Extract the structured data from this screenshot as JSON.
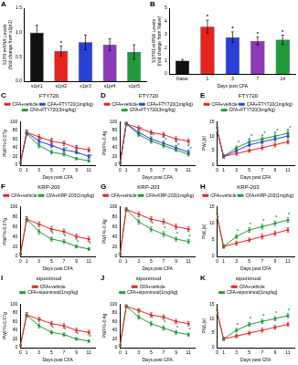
{
  "chart_data": [
    {
      "panel": "A",
      "type": "bar",
      "y_label": [
        "S1PR mRNA Levels",
        "(fold change from s1pr1)"
      ],
      "categories": [
        "s1pr1",
        "s1pr2",
        "s1pr3",
        "s1pr4",
        "s1pr5"
      ],
      "values": [
        1.0,
        0.62,
        0.8,
        0.75,
        0.6
      ],
      "errors": [
        0.15,
        0.1,
        0.15,
        0.12,
        0.15
      ],
      "significance": [
        null,
        "*",
        null,
        null,
        null
      ],
      "colors": [
        "#111111",
        "#e8221f",
        "#2a3fd6",
        "#8a3ab9",
        "#1f9a3a"
      ],
      "ylim": [
        0,
        1.5
      ],
      "yticks": [
        {
          "value": 0,
          "label": "0.0"
        },
        {
          "value": 0.5,
          "label": "0.5"
        },
        {
          "value": 1,
          "label": "1.0"
        },
        {
          "value": 1.5,
          "label": "1.5"
        }
      ],
      "grid": false
    },
    {
      "panel": "B",
      "type": "bar",
      "y_label": [
        "S1PR1 mRNA Levels",
        "(fold change from Naive)"
      ],
      "x_label": "Days post CFA",
      "categories": [
        "Naive",
        "1",
        "3",
        "7",
        "14"
      ],
      "values": [
        1.0,
        3.6,
        2.8,
        2.5,
        2.6
      ],
      "errors": [
        0.1,
        0.5,
        0.4,
        0.3,
        0.35
      ],
      "significance": [
        null,
        "*",
        "*",
        "*",
        "*"
      ],
      "colors": [
        "#111111",
        "#e8221f",
        "#2a3fd6",
        "#8a3ab9",
        "#1f9a3a"
      ],
      "ylim": [
        0,
        5
      ],
      "yticks": [
        0,
        1,
        2,
        3,
        4,
        5
      ],
      "grid": false
    },
    {
      "panel": "C",
      "type": "line",
      "title": "FTY720",
      "y_label": "PWF%-0.07g",
      "x_label": "Days post CFA",
      "x": [
        0,
        1,
        3,
        5,
        7,
        9,
        11
      ],
      "xlim": [
        0,
        12
      ],
      "xticks": [
        0,
        1,
        3,
        5,
        7,
        9,
        11
      ],
      "ylim": [
        0,
        100
      ],
      "yticks": [
        0,
        20,
        40,
        60,
        80,
        100
      ],
      "grid": false,
      "legend": "top",
      "marker": "circle",
      "series": [
        {
          "name": "CFA+vehicle",
          "color": "#e8221f",
          "values": [
            5,
            75,
            65,
            55,
            50,
            40,
            35
          ],
          "errors": [
            2,
            5,
            5,
            5,
            5,
            5,
            5
          ]
        },
        {
          "name": "CFA+FTY720(1mg/kg)",
          "color": "#2a3fd6",
          "values": [
            5,
            75,
            55,
            45,
            35,
            30,
            20
          ],
          "errors": [
            2,
            5,
            5,
            5,
            5,
            4,
            4
          ],
          "significance": [
            null,
            null,
            null,
            "*",
            "*",
            "*",
            "*"
          ]
        },
        {
          "name": "CFA+FTY720(3mg/kg)",
          "color": "#1f9a3a",
          "values": [
            5,
            72,
            45,
            30,
            25,
            15,
            10
          ],
          "errors": [
            2,
            5,
            5,
            4,
            4,
            3,
            3
          ],
          "significance": [
            null,
            null,
            "*",
            "*",
            "*",
            "*",
            "*"
          ]
        }
      ]
    },
    {
      "panel": "D",
      "type": "line",
      "title": "FTY720",
      "y_label": "PWF%-0.4g",
      "x_label": "Days post CFA",
      "x": [
        0,
        1,
        3,
        5,
        7,
        9,
        11
      ],
      "xlim": [
        0,
        12
      ],
      "xticks": [
        0,
        1,
        3,
        5,
        7,
        9,
        11
      ],
      "ylim": [
        0,
        100
      ],
      "yticks": [
        0,
        20,
        40,
        60,
        80,
        100
      ],
      "grid": false,
      "legend": "top",
      "marker": "circle",
      "series": [
        {
          "name": "CFA+vehicle",
          "color": "#e8221f",
          "values": [
            5,
            95,
            85,
            75,
            70,
            60,
            55
          ],
          "errors": [
            2,
            3,
            5,
            5,
            5,
            5,
            5
          ]
        },
        {
          "name": "CFA+FTY720(1mg/kg)",
          "color": "#2a3fd6",
          "values": [
            5,
            95,
            75,
            60,
            50,
            40,
            30
          ],
          "errors": [
            2,
            3,
            5,
            5,
            5,
            5,
            5
          ],
          "significance": [
            null,
            null,
            null,
            "*",
            "*",
            "*",
            "*"
          ]
        },
        {
          "name": "CFA+FTY720(3mg/kg)",
          "color": "#1f9a3a",
          "values": [
            5,
            95,
            70,
            55,
            45,
            35,
            25
          ],
          "errors": [
            2,
            3,
            5,
            5,
            5,
            4,
            4
          ],
          "significance": [
            null,
            null,
            "*",
            "*",
            "*",
            "*",
            "*"
          ]
        }
      ]
    },
    {
      "panel": "E",
      "type": "line",
      "title": "FTY720",
      "y_label": "PWL(s)",
      "x_label": "Days post CFA",
      "x": [
        0,
        1,
        3,
        5,
        7,
        9,
        11
      ],
      "xlim": [
        0,
        12
      ],
      "xticks": [
        0,
        1,
        3,
        5,
        7,
        9,
        11
      ],
      "ylim": [
        0,
        15
      ],
      "yticks": [
        0,
        5,
        10,
        15
      ],
      "grid": false,
      "legend": "top",
      "marker": "circle",
      "series": [
        {
          "name": "CFA+vehicle",
          "color": "#e8221f",
          "values": [
            12,
            3,
            4,
            5,
            6,
            7,
            8
          ],
          "errors": [
            0.8,
            0.5,
            0.6,
            0.6,
            0.7,
            0.7,
            0.7
          ]
        },
        {
          "name": "CFA+FTY720(1mg/kg)",
          "color": "#2a3fd6",
          "values": [
            12,
            3,
            5,
            7,
            8,
            9,
            10
          ],
          "errors": [
            0.8,
            0.5,
            0.6,
            0.6,
            0.7,
            0.7,
            0.7
          ],
          "significance": [
            null,
            null,
            null,
            "*",
            "*",
            "*",
            "*"
          ]
        },
        {
          "name": "CFA+FTY720(3mg/kg)",
          "color": "#1f9a3a",
          "values": [
            12,
            3,
            6,
            8,
            9,
            10,
            11
          ],
          "errors": [
            0.8,
            0.5,
            0.6,
            0.7,
            0.7,
            0.7,
            0.7
          ],
          "significance": [
            null,
            null,
            "*",
            "*",
            "*",
            "*",
            "*"
          ]
        }
      ]
    },
    {
      "panel": "F",
      "type": "line",
      "title": "KRP-203",
      "y_label": "PWF%-0.07g",
      "x_label": "Days post CFA",
      "x": [
        0,
        1,
        3,
        5,
        7,
        9,
        11
      ],
      "xlim": [
        0,
        12
      ],
      "xticks": [
        0,
        1,
        3,
        5,
        7,
        9,
        11
      ],
      "ylim": [
        0,
        100
      ],
      "yticks": [
        0,
        20,
        40,
        60,
        80,
        100
      ],
      "grid": false,
      "legend": "top",
      "marker": "circle",
      "series": [
        {
          "name": "CFA+vehicle",
          "color": "#e8221f",
          "values": [
            5,
            75,
            65,
            55,
            50,
            40,
            35
          ],
          "errors": [
            2,
            5,
            5,
            5,
            5,
            5,
            5
          ]
        },
        {
          "name": "CFA+KRP-203(1mg/kg)",
          "color": "#1f9a3a",
          "values": [
            5,
            75,
            50,
            35,
            30,
            20,
            15
          ],
          "errors": [
            2,
            5,
            5,
            4,
            4,
            3,
            3
          ],
          "significance": [
            null,
            null,
            "*",
            "*",
            "*",
            "*",
            "*"
          ]
        }
      ]
    },
    {
      "panel": "G",
      "type": "line",
      "title": "KRP-203",
      "y_label": "PWF%-0.4g",
      "x_label": "Days post CFA",
      "x": [
        0,
        1,
        3,
        5,
        7,
        9,
        11
      ],
      "xlim": [
        0,
        12
      ],
      "xticks": [
        0,
        1,
        3,
        5,
        7,
        9,
        11
      ],
      "ylim": [
        0,
        100
      ],
      "yticks": [
        0,
        20,
        40,
        60,
        80,
        100
      ],
      "grid": false,
      "legend": "top",
      "marker": "circle",
      "series": [
        {
          "name": "CFA+vehicle",
          "color": "#e8221f",
          "values": [
            5,
            95,
            85,
            75,
            70,
            60,
            55
          ],
          "errors": [
            2,
            3,
            5,
            5,
            5,
            5,
            5
          ]
        },
        {
          "name": "CFA+KRP-203(1mg/kg)",
          "color": "#1f9a3a",
          "values": [
            5,
            95,
            70,
            55,
            45,
            35,
            30
          ],
          "errors": [
            2,
            3,
            5,
            5,
            5,
            4,
            4
          ],
          "significance": [
            null,
            null,
            "*",
            "*",
            "*",
            "*",
            "*"
          ]
        }
      ]
    },
    {
      "panel": "H",
      "type": "line",
      "title": "KRP-203",
      "y_label": "PWL(s)",
      "x_label": "Days post CFA",
      "x": [
        0,
        1,
        3,
        5,
        7,
        9,
        11
      ],
      "xlim": [
        0,
        12
      ],
      "xticks": [
        0,
        1,
        3,
        5,
        7,
        9,
        11
      ],
      "ylim": [
        0,
        15
      ],
      "yticks": [
        0,
        5,
        10,
        15
      ],
      "grid": false,
      "legend": "top",
      "marker": "circle",
      "series": [
        {
          "name": "CFA+vehicle",
          "color": "#e8221f",
          "values": [
            12,
            3,
            4,
            5,
            6,
            7,
            8
          ],
          "errors": [
            0.8,
            0.5,
            0.6,
            0.6,
            0.7,
            0.7,
            0.7
          ]
        },
        {
          "name": "CFA+KRP-203(1mg/kg)",
          "color": "#1f9a3a",
          "values": [
            12,
            3,
            6,
            8,
            9,
            10,
            11
          ],
          "errors": [
            0.8,
            0.5,
            0.6,
            0.7,
            0.7,
            0.7,
            0.7
          ],
          "significance": [
            null,
            null,
            "*",
            "*",
            "*",
            "*",
            "*"
          ]
        }
      ]
    },
    {
      "panel": "I",
      "type": "line",
      "title": "siponimod",
      "y_label": "PWF%-0.07g",
      "x_label": "Days post CFA",
      "x": [
        0,
        1,
        3,
        5,
        7,
        9,
        11
      ],
      "xlim": [
        0,
        12
      ],
      "xticks": [
        0,
        1,
        3,
        5,
        7,
        9,
        11
      ],
      "ylim": [
        0,
        100
      ],
      "yticks": [
        0,
        20,
        40,
        60,
        80,
        100
      ],
      "grid": false,
      "legend": "top",
      "marker": "circle",
      "series": [
        {
          "name": "CFA+vehicle",
          "color": "#e8221f",
          "values": [
            5,
            75,
            65,
            55,
            50,
            40,
            35
          ],
          "errors": [
            2,
            5,
            5,
            5,
            5,
            5,
            5
          ]
        },
        {
          "name": "CFA+siponimod(1mg/kg)",
          "color": "#1f9a3a",
          "values": [
            5,
            75,
            50,
            35,
            30,
            20,
            15
          ],
          "errors": [
            2,
            5,
            5,
            4,
            4,
            3,
            3
          ],
          "significance": [
            null,
            null,
            "*",
            "*",
            "*",
            "*",
            "*"
          ]
        }
      ]
    },
    {
      "panel": "J",
      "type": "line",
      "title": "siponimod",
      "y_label": "PWF%-0.4g",
      "x_label": "Days post CFA",
      "x": [
        0,
        1,
        3,
        5,
        7,
        9,
        11
      ],
      "xlim": [
        0,
        12
      ],
      "xticks": [
        0,
        1,
        3,
        5,
        7,
        9,
        11
      ],
      "ylim": [
        0,
        100
      ],
      "yticks": [
        0,
        20,
        40,
        60,
        80,
        100
      ],
      "grid": false,
      "legend": "top",
      "marker": "circle",
      "series": [
        {
          "name": "CFA+vehicle",
          "color": "#e8221f",
          "values": [
            5,
            95,
            85,
            75,
            70,
            60,
            55
          ],
          "errors": [
            2,
            3,
            5,
            5,
            5,
            5,
            5
          ]
        },
        {
          "name": "CFA+siponimod(1mg/kg)",
          "color": "#1f9a3a",
          "values": [
            5,
            95,
            70,
            55,
            45,
            35,
            30
          ],
          "errors": [
            2,
            3,
            5,
            5,
            5,
            4,
            4
          ],
          "significance": [
            null,
            null,
            "*",
            "*",
            "*",
            "*",
            "*"
          ]
        }
      ]
    },
    {
      "panel": "K",
      "type": "line",
      "title": "siponimod",
      "y_label": "PWL(s)",
      "x_label": "Days post CFA",
      "x": [
        0,
        1,
        3,
        5,
        7,
        9,
        11
      ],
      "xlim": [
        0,
        12
      ],
      "xticks": [
        0,
        1,
        3,
        5,
        7,
        9,
        11
      ],
      "ylim": [
        0,
        15
      ],
      "yticks": [
        0,
        5,
        10,
        15
      ],
      "grid": false,
      "legend": "top",
      "marker": "circle",
      "series": [
        {
          "name": "CFA+vehicle",
          "color": "#e8221f",
          "values": [
            12,
            3,
            4,
            5,
            6,
            7,
            8
          ],
          "errors": [
            0.8,
            0.5,
            0.6,
            0.6,
            0.7,
            0.7,
            0.7
          ]
        },
        {
          "name": "CFA+siponimod(1mg/kg)",
          "color": "#1f9a3a",
          "values": [
            12,
            3,
            6,
            8,
            9,
            10,
            11
          ],
          "errors": [
            0.8,
            0.5,
            0.6,
            0.7,
            0.7,
            0.7,
            0.7
          ],
          "significance": [
            null,
            null,
            "*",
            "*",
            "*",
            "*",
            "*"
          ]
        }
      ]
    }
  ]
}
